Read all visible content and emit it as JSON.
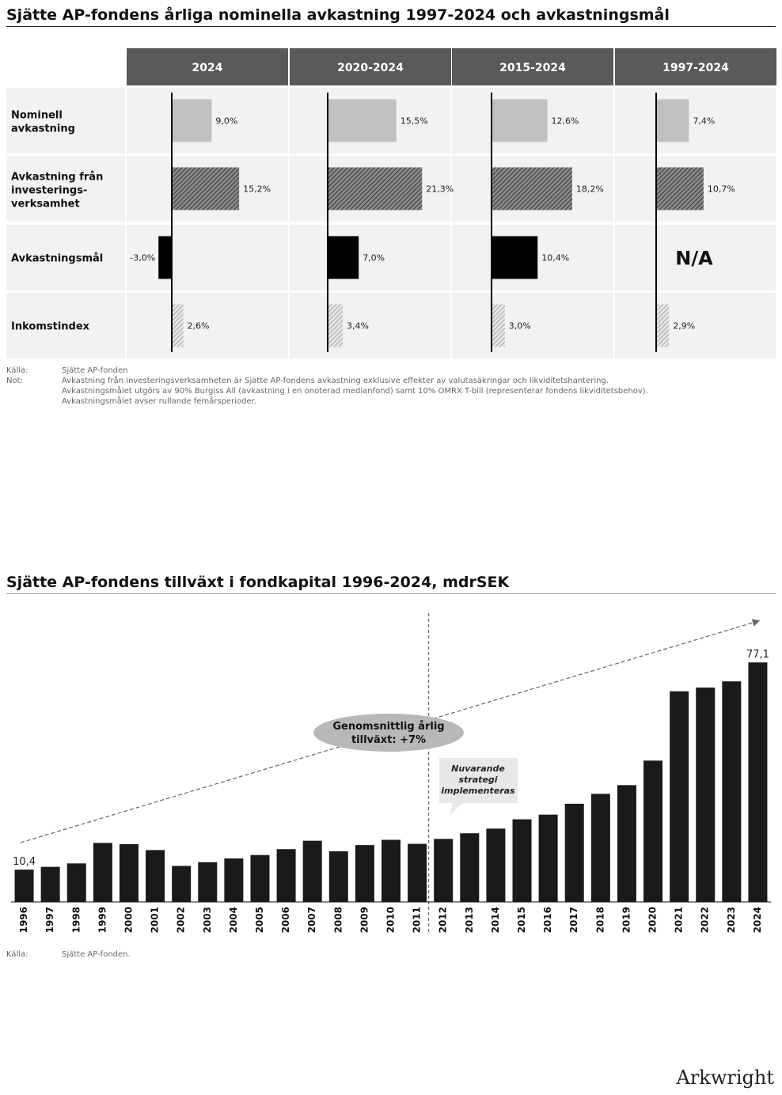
{
  "table_chart": {
    "title": "Sjätte AP-fondens årliga nominella avkastning 1997-2024 och avkastningsmål",
    "chart_data": {
      "type": "bar",
      "orientation": "horizontal-panels",
      "columns": [
        "2024",
        "2020-2024",
        "2015-2024",
        "1997-2024"
      ],
      "rows": [
        {
          "label": "Nominell avkastning",
          "values": [
            9.0,
            15.5,
            12.6,
            7.4
          ],
          "labels": [
            "9,0%",
            "15,5%",
            "12,6%",
            "7,4%"
          ],
          "style": "light-gray"
        },
        {
          "label": "Avkastning från investerings-verksamhet",
          "values": [
            15.2,
            21.3,
            18.2,
            10.7
          ],
          "labels": [
            "15,2%",
            "21,3%",
            "18,2%",
            "10,7%"
          ],
          "style": "dark-hatch"
        },
        {
          "label": "Avkastningsmål",
          "values": [
            -3.0,
            7.0,
            10.4,
            null
          ],
          "labels": [
            "-3,0%",
            "7,0%",
            "10,4%",
            "N/A"
          ],
          "style": "black"
        },
        {
          "label": "Inkomstindex",
          "values": [
            2.6,
            3.4,
            3.0,
            2.9
          ],
          "labels": [
            "2,6%",
            "3,4%",
            "3,0%",
            "2,9%"
          ],
          "style": "light-hatch"
        }
      ]
    },
    "notes": [
      {
        "key": "Källa:",
        "text": "Sjätte AP-fonden"
      },
      {
        "key": "Not:",
        "text": "Avkastning från investeringsverksamheten är Sjätte AP-fondens avkastning exklusive effekter av valutasäkringar och likviditetshantering."
      },
      {
        "key": "",
        "text": "Avkastningsmålet utgörs av 90% Burgiss All (avkastning i en onoterad medianfond) samt 10% OMRX T-bill (representerar fondens likviditetsbehov)."
      },
      {
        "key": "",
        "text": "Avkastningsmålet avser rullande femårsperioder."
      }
    ]
  },
  "bar_chart": {
    "title": "Sjätte AP-fondens tillväxt i fondkapital 1996-2024, mdrSEK",
    "chart_data": {
      "type": "bar",
      "categories": [
        "1996",
        "1997",
        "1998",
        "1999",
        "2000",
        "2001",
        "2002",
        "2003",
        "2004",
        "2005",
        "2006",
        "2007",
        "2008",
        "2009",
        "2010",
        "2011",
        "2012",
        "2013",
        "2014",
        "2015",
        "2016",
        "2017",
        "2018",
        "2019",
        "2020",
        "2021",
        "2022",
        "2023",
        "2024"
      ],
      "values": [
        10.4,
        11.3,
        12.4,
        19.0,
        18.6,
        16.7,
        11.6,
        12.8,
        14.0,
        15.1,
        17.0,
        19.7,
        16.3,
        18.3,
        20.0,
        18.7,
        20.3,
        22.1,
        23.6,
        26.6,
        28.1,
        31.6,
        34.8,
        37.6,
        45.5,
        67.8,
        69.0,
        71.0,
        77.1
      ],
      "value_labels": {
        "first": "10,4",
        "last": "77,1"
      },
      "ylim": [
        0,
        82
      ],
      "annotations": {
        "trend": "Genomsnittlig årlig tillväxt: +7%",
        "callout": "Nuvarande strategi implementeras",
        "divider_after": "2011"
      }
    },
    "notes": [
      {
        "key": "Källa:",
        "text": "Sjätte AP-fonden."
      }
    ]
  },
  "logo": "Arkwright",
  "colors": {
    "header_bg": "#5a5a5a",
    "row_bg": "#f2f2f2",
    "light_gray": "#c0c0c0",
    "black": "#000000",
    "bar": "#1a1a1a",
    "ellipse": "#b8b8b8"
  }
}
